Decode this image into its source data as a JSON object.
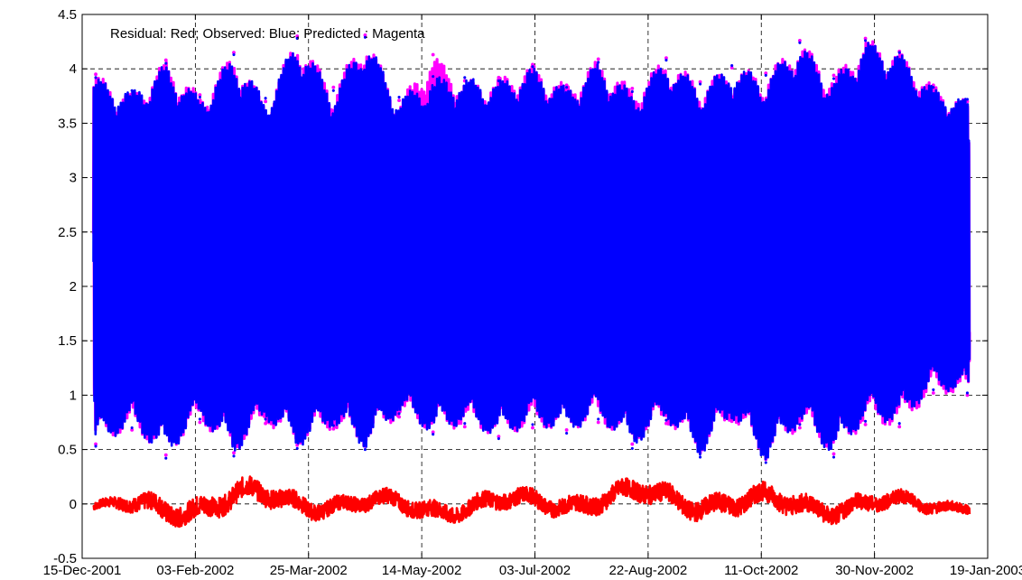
{
  "chart_data": {
    "type": "line",
    "annotation": "Residual: Red; Observed: Blue; Predicted : Magenta",
    "xlabel": "",
    "ylabel": "",
    "ylim": [
      -0.5,
      4.5
    ],
    "yticks": [
      -0.5,
      0,
      0.5,
      1,
      1.5,
      2,
      2.5,
      3,
      3.5,
      4,
      4.5
    ],
    "ytick_labels": [
      "-0.5",
      "0",
      "0.5",
      "1",
      "1.5",
      "2",
      "2.5",
      "3",
      "3.5",
      "4",
      "4.5"
    ],
    "xlim": [
      "2001-12-15",
      "2003-01-19"
    ],
    "xticks": [
      "2001-12-15",
      "2002-02-03",
      "2002-03-25",
      "2002-05-14",
      "2002-07-03",
      "2002-08-22",
      "2002-10-11",
      "2002-11-30",
      "2003-01-19"
    ],
    "xtick_labels": [
      "15-Dec-2001",
      "03-Feb-2002",
      "25-Mar-2002",
      "14-May-2002",
      "03-Jul-2002",
      "22-Aug-2002",
      "11-Oct-2002",
      "30-Nov-2002",
      "19-Jan-2003"
    ],
    "data_range": [
      "2001-12-20",
      "2003-01-11"
    ],
    "grid": true,
    "grid_style": "dashed",
    "colors": {
      "observed": "#0000ff",
      "predicted": "#ff00ff",
      "residual": "#ff0000"
    },
    "series": [
      {
        "name": "Observed",
        "color": "#0000ff",
        "envelope_x": [
          "2001-12-21",
          "2002-01-06",
          "2002-01-21",
          "2002-02-05",
          "2002-02-20",
          "2002-03-06",
          "2002-03-20",
          "2002-04-05",
          "2002-04-19",
          "2002-05-04",
          "2002-05-19",
          "2002-06-02",
          "2002-06-17",
          "2002-07-02",
          "2002-07-17",
          "2002-07-31",
          "2002-08-15",
          "2002-08-30",
          "2002-09-14",
          "2002-09-28",
          "2002-10-13",
          "2002-10-28",
          "2002-11-12",
          "2002-11-26",
          "2002-12-11",
          "2002-12-26",
          "2003-01-10"
        ],
        "envelope_high": [
          3.92,
          3.8,
          4.05,
          3.74,
          4.13,
          3.73,
          4.28,
          3.8,
          4.29,
          3.74,
          3.93,
          3.92,
          3.89,
          4.02,
          3.83,
          4.06,
          3.79,
          4.08,
          3.86,
          4.03,
          3.94,
          4.24,
          3.91,
          4.26,
          4.15,
          3.83,
          3.72
        ],
        "envelope_low": [
          0.53,
          0.7,
          0.42,
          0.78,
          0.44,
          0.78,
          0.51,
          0.72,
          0.5,
          0.83,
          0.64,
          0.74,
          0.6,
          0.73,
          0.65,
          0.78,
          0.51,
          0.77,
          0.43,
          0.79,
          0.38,
          0.73,
          0.43,
          0.76,
          0.74,
          1.05,
          1.02
        ]
      },
      {
        "name": "Predicted",
        "color": "#ff00ff",
        "envelope_x": [
          "2001-12-21",
          "2002-01-06",
          "2002-01-21",
          "2002-02-05",
          "2002-02-20",
          "2002-03-06",
          "2002-03-20",
          "2002-04-05",
          "2002-04-19",
          "2002-05-04",
          "2002-05-19",
          "2002-06-02",
          "2002-06-17",
          "2002-07-02",
          "2002-07-17",
          "2002-07-31",
          "2002-08-15",
          "2002-08-30",
          "2002-09-14",
          "2002-09-28",
          "2002-10-13",
          "2002-10-28",
          "2002-11-12",
          "2002-11-26",
          "2002-12-11",
          "2002-12-26",
          "2003-01-10"
        ],
        "envelope_high": [
          3.95,
          3.77,
          4.08,
          3.76,
          4.15,
          3.7,
          4.3,
          3.83,
          4.31,
          3.71,
          4.13,
          3.89,
          3.92,
          4.04,
          3.85,
          4.09,
          3.82,
          4.1,
          3.88,
          4.01,
          3.96,
          4.26,
          3.94,
          4.28,
          4.16,
          3.85,
          3.7
        ],
        "envelope_low": [
          0.55,
          0.68,
          0.45,
          0.75,
          0.47,
          0.74,
          0.54,
          0.69,
          0.53,
          0.8,
          0.66,
          0.71,
          0.62,
          0.7,
          0.68,
          0.75,
          0.55,
          0.74,
          0.47,
          0.76,
          0.41,
          0.7,
          0.46,
          0.73,
          0.71,
          1.02,
          1.0
        ]
      },
      {
        "name": "Residual",
        "color": "#ff0000",
        "envelope_x": [
          "2001-12-21",
          "2002-01-20",
          "2002-02-28",
          "2002-04-10",
          "2002-05-20",
          "2002-07-05",
          "2002-08-20",
          "2002-10-05",
          "2002-11-15",
          "2003-01-10"
        ],
        "envelope_high": [
          0.05,
          0.17,
          0.26,
          0.15,
          0.14,
          0.18,
          0.26,
          0.2,
          0.18,
          0.08
        ],
        "envelope_low": [
          -0.1,
          -0.24,
          -0.15,
          -0.15,
          -0.2,
          -0.15,
          -0.12,
          -0.2,
          -0.19,
          -0.1
        ]
      }
    ]
  }
}
